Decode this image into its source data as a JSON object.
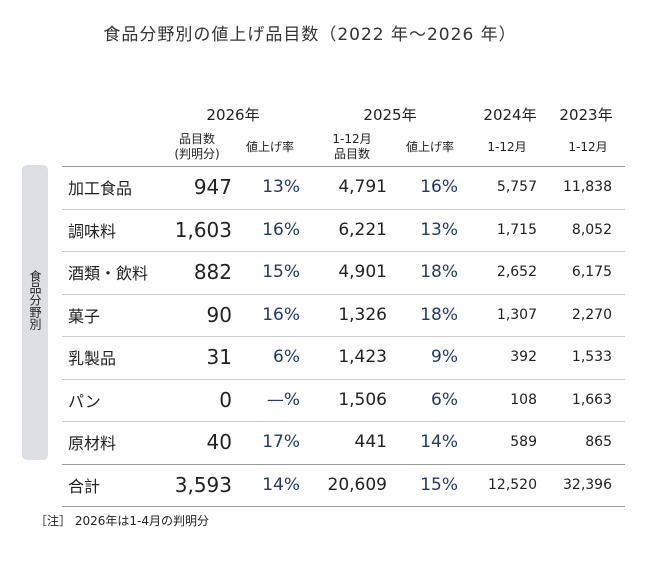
{
  "title": "食品分野別の値上げ品目数（2022 年～2026 年）",
  "side_label": "食品分野別",
  "header": {
    "years": [
      "2026年",
      "2025年",
      "2024年",
      "2023年"
    ],
    "subheaders": [
      [
        "品目数",
        "(判明分)"
      ],
      [
        "値上げ率"
      ],
      [
        "1-12月",
        "品目数"
      ],
      [
        "値上げ率"
      ],
      [
        "1-12月"
      ],
      [
        "1-12月"
      ]
    ]
  },
  "rows": [
    [
      "加工食品",
      "947",
      "13%",
      "4,791",
      "16%",
      "5,757",
      "11,838"
    ],
    [
      "調味料",
      "1,603",
      "16%",
      "6,221",
      "13%",
      "1,715",
      "8,052"
    ],
    [
      "酒類・飲料",
      "882",
      "15%",
      "4,901",
      "18%",
      "2,652",
      "6,175"
    ],
    [
      "菓子",
      "90",
      "16%",
      "1,326",
      "18%",
      "1,307",
      "2,270"
    ],
    [
      "乳製品",
      "31",
      "6%",
      "1,423",
      "9%",
      "392",
      "1,533"
    ],
    [
      "パン",
      "0",
      "—%",
      "1,506",
      "6%",
      "108",
      "1,663"
    ],
    [
      "原材料",
      "40",
      "17%",
      "441",
      "14%",
      "589",
      "865"
    ]
  ],
  "total": [
    "合計",
    "3,593",
    "14%",
    "20,609",
    "15%",
    "12,520",
    "32,396"
  ],
  "note": "［注］ 2026年は1-4月の判明分"
}
